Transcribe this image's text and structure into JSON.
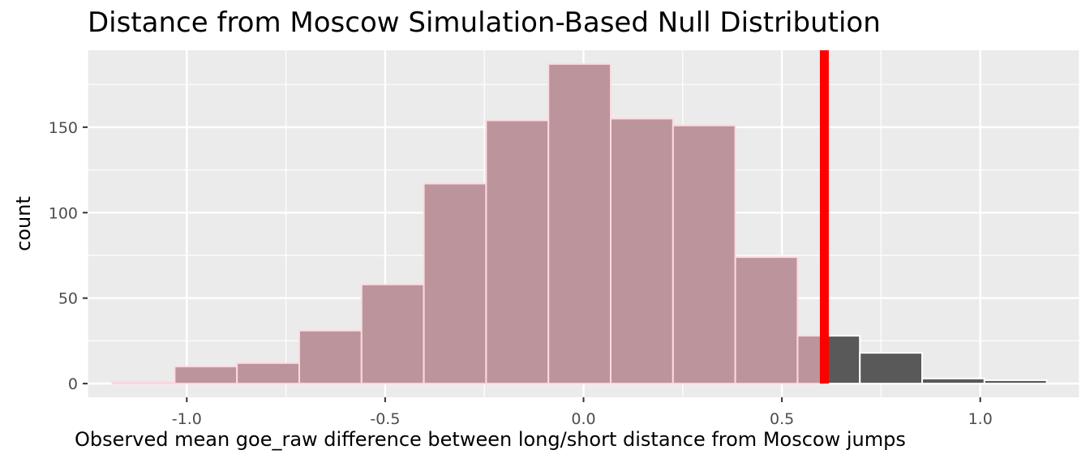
{
  "chart_data": {
    "type": "bar",
    "title": "Distance from Moscow Simulation-Based Null Distribution",
    "xlabel": "Observed mean goe_raw difference between long/short distance from Moscow jumps",
    "ylabel": "count",
    "xlim": [
      -1.25,
      1.25
    ],
    "ylim": [
      -8,
      195
    ],
    "x_ticks": [
      -1.0,
      -0.5,
      0.0,
      0.5,
      1.0
    ],
    "x_tick_labels": [
      "-1.0",
      "-0.5",
      "0.0",
      "0.5",
      "1.0"
    ],
    "y_ticks": [
      0,
      50,
      100,
      150
    ],
    "y_tick_labels": [
      "0",
      "50",
      "100",
      "150"
    ],
    "grid": true,
    "bin_width": 0.157,
    "bins": [
      {
        "center": -1.109,
        "count": 1
      },
      {
        "center": -0.952,
        "count": 10
      },
      {
        "center": -0.795,
        "count": 12
      },
      {
        "center": -0.638,
        "count": 31
      },
      {
        "center": -0.481,
        "count": 58
      },
      {
        "center": -0.324,
        "count": 117
      },
      {
        "center": -0.167,
        "count": 154
      },
      {
        "center": -0.01,
        "count": 187
      },
      {
        "center": 0.147,
        "count": 155
      },
      {
        "center": 0.304,
        "count": 151
      },
      {
        "center": 0.461,
        "count": 74
      },
      {
        "center": 0.618,
        "count": 28
      },
      {
        "center": 0.775,
        "count": 18
      },
      {
        "center": 0.932,
        "count": 3
      },
      {
        "center": 1.089,
        "count": 2
      }
    ],
    "observed_statistic": 0.607,
    "colors": {
      "panel": "#ebebeb",
      "grid": "#ffffff",
      "bar_fill": "#bc959c",
      "bar_outline": "#ffd9e0",
      "shaded_fill": "#595959",
      "shaded_outline": "#ffffff",
      "obs_line": "#ff0000"
    }
  }
}
